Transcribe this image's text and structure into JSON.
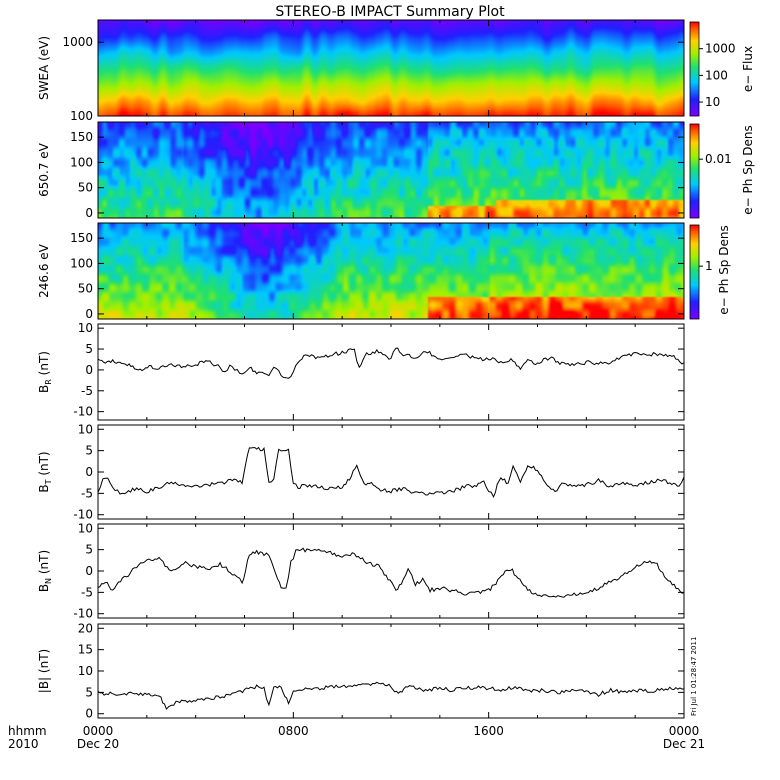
{
  "chart_data": [
    {
      "type": "heatmap",
      "title": "STEREO-B IMPACT Summary Plot",
      "ylabel": "SWEA (eV)",
      "yscale": "log",
      "ylim": [
        100,
        2000
      ],
      "yticks": [
        {
          "v": 100,
          "t": "100"
        },
        {
          "v": 1000,
          "t": "1000"
        }
      ],
      "colorbar": {
        "label": "e− Flux",
        "scale": "log",
        "range": [
          3,
          10000
        ],
        "ticks": [
          {
            "v": 10,
            "t": "10"
          },
          {
            "v": 100,
            "t": "100"
          },
          {
            "v": 1000,
            "t": "1000"
          }
        ]
      }
    },
    {
      "type": "heatmap",
      "ylabel": "650.7 eV",
      "ylim": [
        -10,
        180
      ],
      "yticks": [
        {
          "v": 0,
          "t": "0"
        },
        {
          "v": 50,
          "t": "50"
        },
        {
          "v": 100,
          "t": "100"
        },
        {
          "v": 150,
          "t": "150"
        }
      ],
      "colorbar": {
        "label": "e− Ph Sp Dens",
        "scale": "log",
        "range": [
          0.0005,
          0.06
        ],
        "ticks": [
          {
            "v": 0.01,
            "t": "0.01"
          }
        ]
      }
    },
    {
      "type": "heatmap",
      "ylabel": "246.6 eV",
      "ylim": [
        -10,
        180
      ],
      "yticks": [
        {
          "v": 0,
          "t": "0"
        },
        {
          "v": 50,
          "t": "50"
        },
        {
          "v": 100,
          "t": "100"
        },
        {
          "v": 150,
          "t": "150"
        }
      ],
      "colorbar": {
        "label": "e− Ph Sp Dens",
        "scale": "log",
        "range": [
          0.1,
          6
        ],
        "ticks": [
          {
            "v": 1,
            "t": "1"
          }
        ]
      }
    },
    {
      "type": "line",
      "ylabel": "B_R (nT)",
      "ylim": [
        -12,
        11
      ],
      "yticks": [
        -10,
        -5,
        0,
        5,
        10
      ],
      "x": [
        0,
        0.3,
        0.6,
        0.9,
        1.2,
        1.5,
        1.8,
        2.1,
        2.4,
        3,
        3.5,
        4,
        4.5,
        5,
        5.2,
        5.4,
        5.6,
        5.8,
        6,
        6.2,
        6.5,
        6.8,
        7,
        7.2,
        7.4,
        7.6,
        7.8,
        7.9,
        8.0,
        8.2,
        8.5,
        9,
        9.5,
        10,
        10.5,
        10.6,
        10.7,
        11,
        11.5,
        12,
        12.2,
        12.5,
        13,
        13.5,
        14,
        14.5,
        15,
        15.5,
        16,
        16.5,
        17,
        17.3,
        17.6,
        18,
        18.5,
        19,
        19.5,
        20,
        20.5,
        21,
        21.5,
        22,
        22.5,
        23,
        23.5,
        24
      ],
      "y": [
        2.8,
        2.0,
        2.2,
        1.6,
        1.4,
        0.5,
        0.3,
        0.8,
        0.5,
        1.2,
        0.8,
        1.4,
        1.9,
        0.8,
        -0.8,
        1.5,
        0.2,
        -0.5,
        -1.0,
        0.8,
        -0.8,
        -0.4,
        -1.5,
        0.5,
        -0.5,
        -1.5,
        -2.2,
        -1.8,
        -0.2,
        1.5,
        4.0,
        3.0,
        3.5,
        4.2,
        5.0,
        2.0,
        0.8,
        3.8,
        4.5,
        2.5,
        5.5,
        3.5,
        3.0,
        4.5,
        2.2,
        2.8,
        3.8,
        2.5,
        2.8,
        2.0,
        2.5,
        0.3,
        2.2,
        1.5,
        3.0,
        1.5,
        1.3,
        1.8,
        1.6,
        1.8,
        3.0,
        3.8,
        3.9,
        3.5,
        3.6,
        1.5
      ]
    },
    {
      "type": "line",
      "ylabel": "B_T (nT)",
      "ylim": [
        -11,
        11
      ],
      "yticks": [
        -10,
        -5,
        0,
        5,
        10
      ],
      "x": [
        0,
        0.2,
        0.4,
        0.6,
        0.8,
        1,
        1.5,
        2,
        2.5,
        3,
        3.5,
        4,
        4.5,
        5,
        5.5,
        5.9,
        6.2,
        6.5,
        6.8,
        7,
        7.2,
        7.4,
        7.6,
        7.8,
        8.0,
        8.2,
        8.5,
        9,
        9.5,
        10,
        10.3,
        10.6,
        10.9,
        11.2,
        11.5,
        12,
        12.5,
        13,
        13.5,
        14,
        14.5,
        15,
        15.5,
        15.8,
        16,
        16.2,
        16.5,
        16.8,
        17,
        17.3,
        17.6,
        18,
        18.4,
        18.8,
        19,
        19.5,
        20,
        20.5,
        21,
        21.5,
        22,
        22.5,
        23,
        23.5,
        23.8,
        24
      ],
      "y": [
        -4.5,
        -2.0,
        -1.0,
        -3.5,
        -4.5,
        -5.0,
        -4.0,
        -4.5,
        -3.5,
        -2.5,
        -3.0,
        -3.2,
        -3.0,
        -2.5,
        -2.0,
        -2.5,
        5.8,
        5.5,
        5.2,
        -2.5,
        -1.5,
        5.2,
        5.0,
        5.0,
        -2.5,
        -3.5,
        -3.2,
        -3.5,
        -3.8,
        -3.5,
        -1.5,
        1.5,
        -3.0,
        -2.5,
        -4.0,
        -4.5,
        -4.0,
        -4.8,
        -5.2,
        -5.0,
        -4.5,
        -3.5,
        -3.0,
        -2.5,
        -4.5,
        -5.5,
        -1.0,
        -3.0,
        1.0,
        -2.0,
        1.5,
        0.5,
        -3.5,
        -4.5,
        -3.0,
        -3.5,
        -3.0,
        -2.0,
        -3.5,
        -2.5,
        -3.0,
        -2.5,
        -2.0,
        -2.5,
        -3.2,
        -1.0
      ]
    },
    {
      "type": "line",
      "ylabel": "B_N (nT)",
      "ylim": [
        -11,
        11
      ],
      "yticks": [
        -10,
        -5,
        0,
        5,
        10
      ],
      "x": [
        0,
        0.3,
        0.6,
        1,
        1.5,
        2,
        2.5,
        3,
        3.5,
        4,
        4.5,
        5,
        5.5,
        5.7,
        5.9,
        6.2,
        6.5,
        6.8,
        7,
        7.2,
        7.5,
        7.7,
        7.9,
        8.1,
        8.4,
        8.8,
        9.2,
        9.6,
        10,
        10.5,
        11,
        11.5,
        11.8,
        12.2,
        12.5,
        12.7,
        13,
        13.3,
        13.6,
        14,
        14.5,
        15,
        15.5,
        16,
        16.3,
        16.6,
        16.9,
        17.2,
        17.6,
        18,
        18.5,
        19,
        19.5,
        20,
        20.5,
        21,
        21.5,
        22,
        22.3,
        22.6,
        22.9,
        23.2,
        23.6,
        24
      ],
      "y": [
        -3.5,
        -2.5,
        -4.5,
        -2.0,
        0.5,
        2.5,
        3.0,
        0.0,
        2.0,
        1.0,
        0.5,
        1.5,
        -0.5,
        -1.0,
        -3.0,
        4.0,
        4.5,
        4.0,
        3.5,
        0.5,
        -3.8,
        -4.0,
        2.0,
        4.5,
        5.0,
        4.5,
        5.0,
        4.0,
        3.5,
        4.0,
        2.0,
        1.0,
        -1.0,
        -4.5,
        -2.0,
        0.5,
        -3.0,
        -2.0,
        -4.5,
        -4.0,
        -4.5,
        -5.5,
        -5.0,
        -4.5,
        -3.0,
        -0.5,
        0.5,
        -1.5,
        -4.5,
        -5.5,
        -6.0,
        -6.2,
        -5.5,
        -5.0,
        -4.0,
        -2.5,
        -1.0,
        1.0,
        2.0,
        2.5,
        1.5,
        -1.0,
        -3.5,
        -5.5
      ]
    },
    {
      "type": "line",
      "ylabel": "|B| (nT)",
      "ylim": [
        -1,
        21
      ],
      "yticks": [
        0,
        5,
        10,
        15,
        20
      ],
      "x": [
        0,
        0.5,
        1,
        1.5,
        2,
        2.5,
        2.8,
        3.0,
        3.2,
        3.5,
        4,
        4.5,
        5,
        5.5,
        6,
        6.5,
        6.8,
        7,
        7.2,
        7.5,
        7.8,
        8,
        8.2,
        8.5,
        9,
        9.5,
        10,
        10.5,
        11,
        11.5,
        12,
        12.3,
        12.6,
        13,
        13.5,
        14,
        14.5,
        15,
        15.5,
        16,
        16.5,
        17,
        17.5,
        18,
        18.5,
        19,
        19.5,
        20,
        20.5,
        21,
        21.5,
        22,
        22.5,
        23,
        23.5,
        24
      ],
      "y": [
        4.8,
        4.7,
        4.8,
        4.5,
        4.5,
        4.2,
        1.5,
        1.8,
        2.5,
        3.0,
        3.2,
        3.5,
        4.0,
        4.5,
        5.5,
        6.5,
        5.8,
        2.0,
        6.0,
        6.5,
        2.3,
        5.5,
        5.5,
        6.2,
        6.0,
        6.3,
        6.5,
        6.5,
        7.0,
        7.0,
        6.5,
        4.5,
        6.5,
        6.0,
        5.5,
        6.0,
        5.5,
        6.0,
        6.2,
        6.0,
        5.5,
        6.2,
        5.5,
        5.5,
        5.2,
        5.0,
        5.5,
        5.2,
        4.5,
        5.5,
        5.0,
        5.5,
        5.2,
        5.5,
        6.0,
        5.8
      ]
    }
  ],
  "x_axis": {
    "range_hours": [
      0,
      24
    ],
    "row1_label": "hhmm",
    "row2_label": "2010",
    "ticks": [
      {
        "hour": 0,
        "label": "0000",
        "date": "Dec 20"
      },
      {
        "hour": 8,
        "label": "0800",
        "date": ""
      },
      {
        "hour": 16,
        "label": "1600",
        "date": ""
      },
      {
        "hour": 24,
        "label": "0000",
        "date": "Dec 21"
      }
    ]
  },
  "footnote": "Fri Jul  1 01:28:47 2011"
}
